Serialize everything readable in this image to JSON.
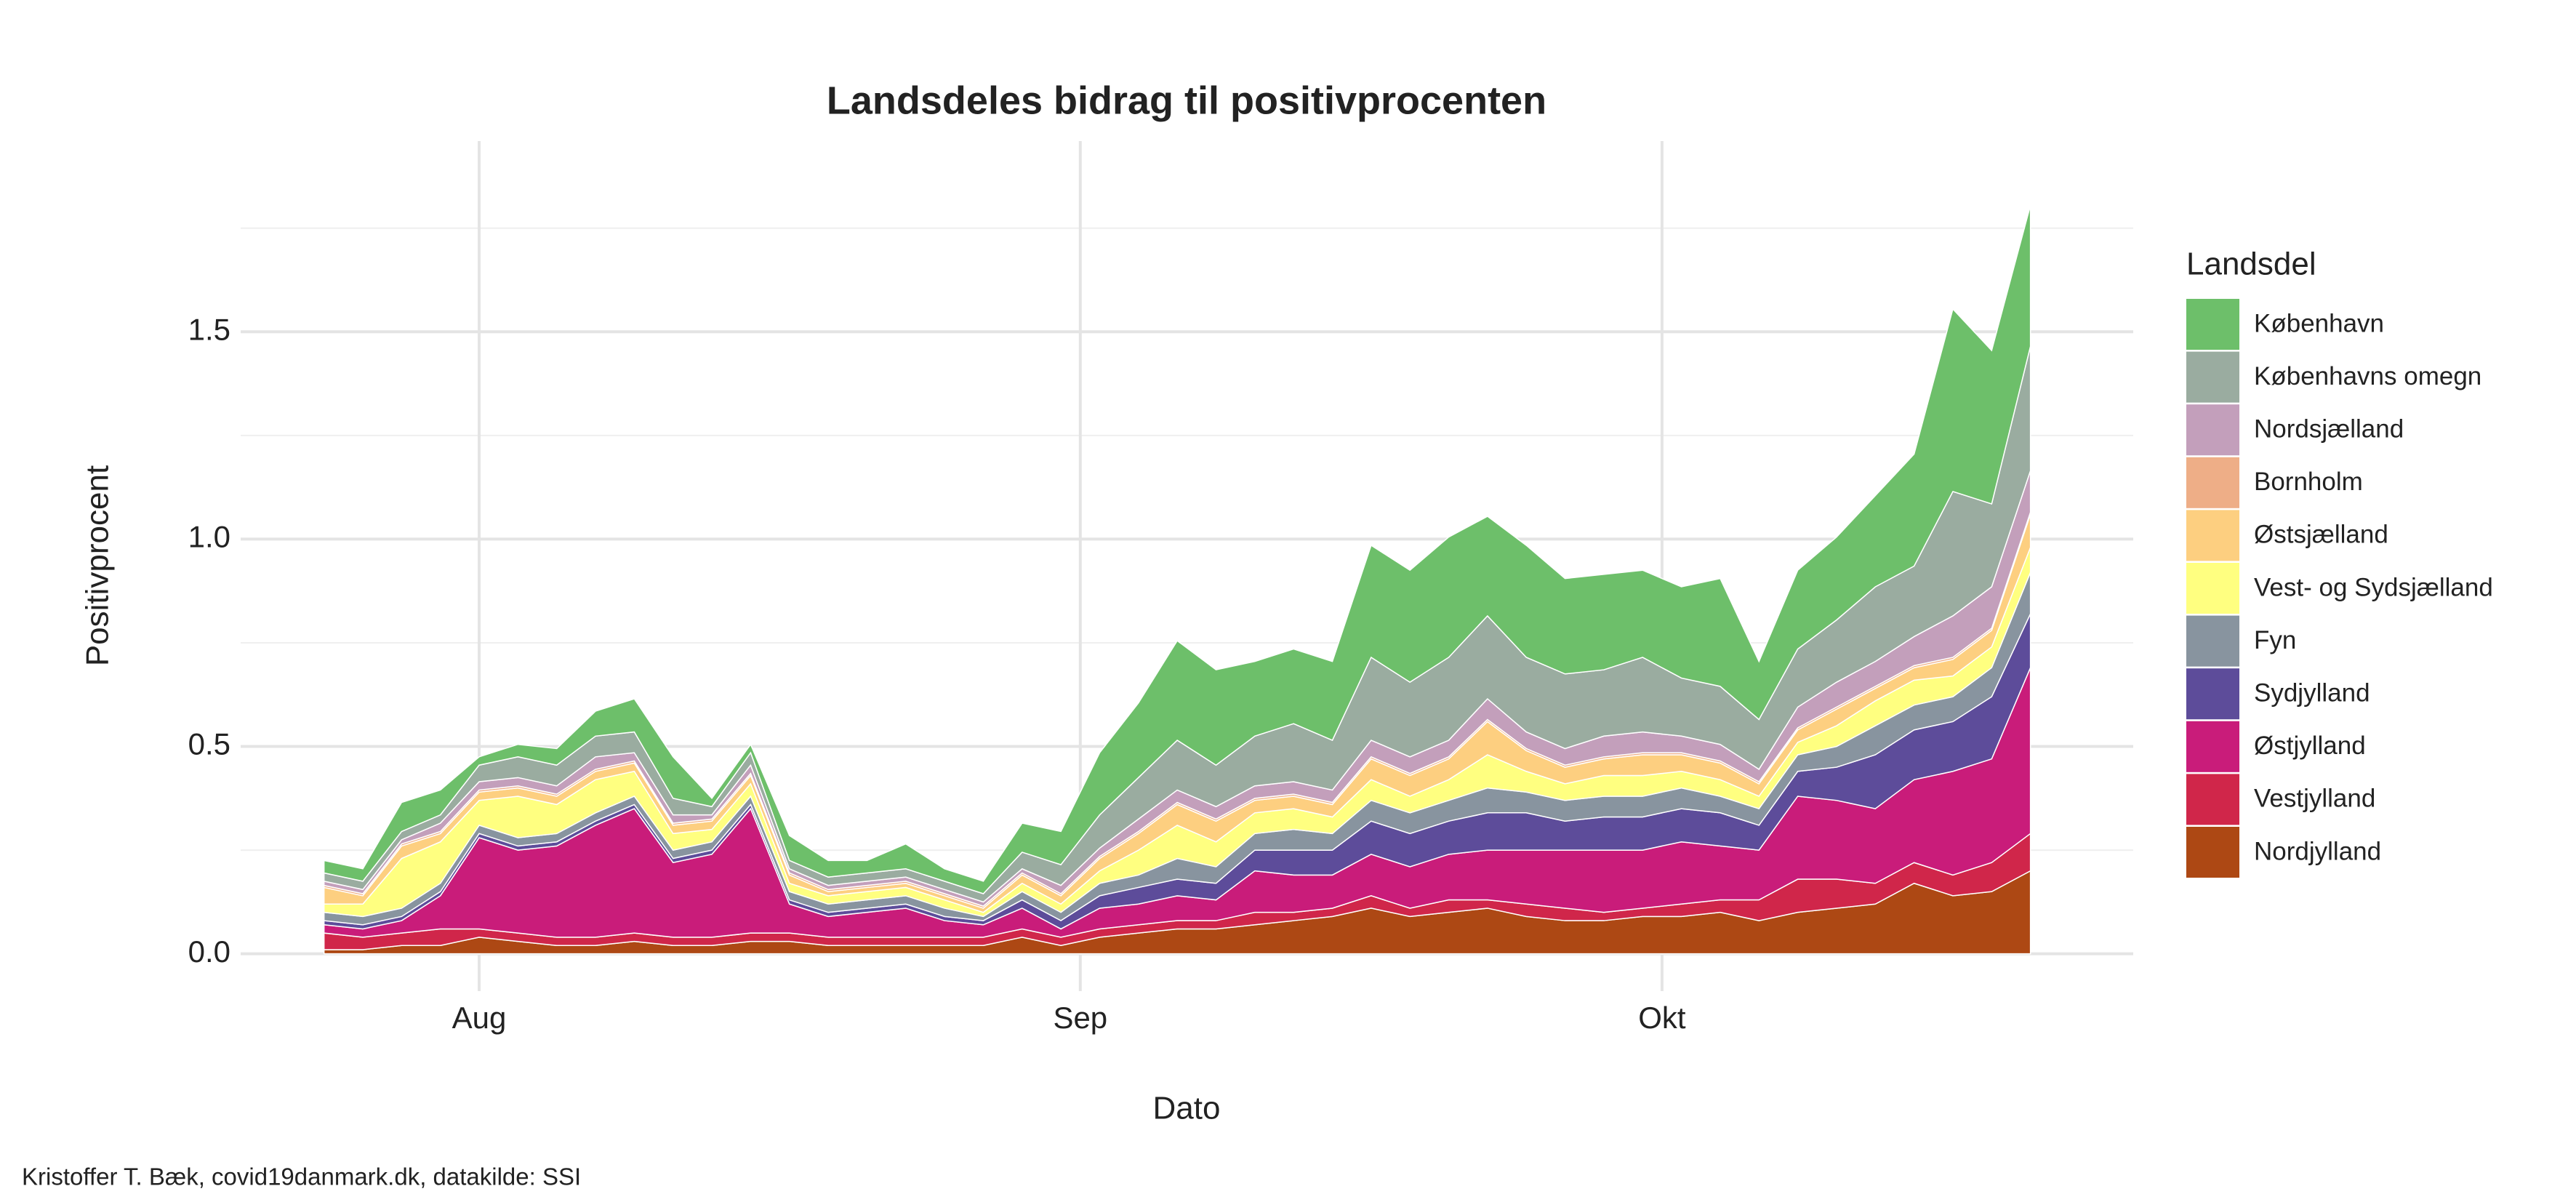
{
  "chart_data": {
    "type": "stacked_area",
    "title": "Landsdeles bidrag til positivprocenten",
    "xlabel": "Dato",
    "ylabel": "Positivprocent",
    "caption": "Kristoffer T. Bæk, covid19danmark.dk, datakilde: SSI",
    "legend_title": "Landsdel",
    "legend": "right",
    "grid": true,
    "x": [
      -8,
      -6,
      -4,
      -2,
      0,
      2,
      4,
      6,
      8,
      10,
      12,
      14,
      16,
      18,
      20,
      22,
      24,
      26,
      28,
      30,
      32,
      34,
      36,
      38,
      40,
      42,
      44,
      46,
      48,
      50,
      52,
      54,
      56,
      58,
      60,
      62,
      64,
      66,
      68,
      70,
      72,
      74,
      76,
      78,
      80
    ],
    "xlim": [
      -12.3,
      85.3
    ],
    "xticks": [
      {
        "value": 0,
        "label": "Aug"
      },
      {
        "value": 31,
        "label": "Sep"
      },
      {
        "value": 61,
        "label": "Okt"
      }
    ],
    "ylim": [
      -0.09,
      1.96
    ],
    "yticks": [
      {
        "value": 0,
        "label": "0.0"
      },
      0.5,
      {
        "value": 1,
        "label": "1.0"
      },
      1.5
    ],
    "yminorticks": [
      0.25,
      0.75,
      1.25,
      1.75
    ],
    "series": [
      {
        "name": "København",
        "color": "#6dbf6a",
        "values": [
          0.03,
          0.03,
          0.07,
          0.06,
          0.02,
          0.03,
          0.04,
          0.06,
          0.08,
          0.1,
          0.02,
          0.02,
          0.06,
          0.04,
          0.03,
          0.06,
          0.03,
          0.03,
          0.07,
          0.08,
          0.15,
          0.18,
          0.24,
          0.23,
          0.18,
          0.18,
          0.19,
          0.27,
          0.27,
          0.29,
          0.24,
          0.27,
          0.23,
          0.23,
          0.21,
          0.22,
          0.26,
          0.14,
          0.19,
          0.2,
          0.22,
          0.27,
          0.44,
          0.37,
          0.34
        ]
      },
      {
        "name": "Københavns omegn",
        "color": "#9aaca0",
        "values": [
          0.02,
          0.02,
          0.02,
          0.02,
          0.04,
          0.05,
          0.05,
          0.05,
          0.05,
          0.04,
          0.02,
          0.03,
          0.02,
          0.02,
          0.02,
          0.02,
          0.02,
          0.02,
          0.04,
          0.05,
          0.08,
          0.1,
          0.12,
          0.1,
          0.12,
          0.14,
          0.12,
          0.2,
          0.18,
          0.2,
          0.2,
          0.18,
          0.18,
          0.16,
          0.18,
          0.14,
          0.14,
          0.12,
          0.14,
          0.15,
          0.18,
          0.17,
          0.3,
          0.2,
          0.3
        ]
      },
      {
        "name": "Nordsjælland",
        "color": "#c39fbb",
        "values": [
          0.01,
          0.01,
          0.01,
          0.02,
          0.02,
          0.02,
          0.02,
          0.03,
          0.02,
          0.02,
          0.01,
          0.02,
          0.01,
          0.01,
          0.01,
          0.01,
          0.01,
          0.01,
          0.01,
          0.02,
          0.02,
          0.03,
          0.03,
          0.03,
          0.03,
          0.03,
          0.03,
          0.04,
          0.04,
          0.04,
          0.05,
          0.04,
          0.04,
          0.05,
          0.05,
          0.04,
          0.04,
          0.03,
          0.05,
          0.06,
          0.06,
          0.07,
          0.1,
          0.1,
          0.1
        ]
      },
      {
        "name": "Bornholm",
        "color": "#eeae87",
        "values": [
          0.005,
          0.005,
          0.005,
          0.005,
          0.005,
          0.005,
          0.005,
          0.005,
          0.005,
          0.005,
          0.005,
          0.005,
          0.005,
          0.005,
          0.005,
          0.005,
          0.005,
          0.005,
          0.005,
          0.005,
          0.005,
          0.005,
          0.005,
          0.005,
          0.005,
          0.005,
          0.005,
          0.005,
          0.005,
          0.005,
          0.005,
          0.005,
          0.005,
          0.005,
          0.005,
          0.005,
          0.005,
          0.005,
          0.005,
          0.005,
          0.005,
          0.005,
          0.005,
          0.005,
          0.005
        ]
      },
      {
        "name": "Østsjælland",
        "color": "#fdcf80",
        "values": [
          0.04,
          0.02,
          0.03,
          0.02,
          0.02,
          0.02,
          0.02,
          0.02,
          0.02,
          0.02,
          0.02,
          0.02,
          0.02,
          0.01,
          0.01,
          0.01,
          0.01,
          0.01,
          0.02,
          0.02,
          0.03,
          0.04,
          0.05,
          0.05,
          0.03,
          0.03,
          0.03,
          0.05,
          0.05,
          0.05,
          0.08,
          0.05,
          0.04,
          0.04,
          0.05,
          0.04,
          0.04,
          0.03,
          0.03,
          0.04,
          0.03,
          0.03,
          0.04,
          0.04,
          0.08
        ]
      },
      {
        "name": "Vest- og Sydsjælland",
        "color": "#ffff80",
        "values": [
          0.02,
          0.03,
          0.12,
          0.1,
          0.06,
          0.1,
          0.07,
          0.08,
          0.06,
          0.04,
          0.03,
          0.03,
          0.02,
          0.02,
          0.02,
          0.02,
          0.02,
          0.01,
          0.02,
          0.02,
          0.03,
          0.06,
          0.08,
          0.06,
          0.05,
          0.05,
          0.04,
          0.05,
          0.04,
          0.05,
          0.08,
          0.05,
          0.04,
          0.05,
          0.05,
          0.04,
          0.04,
          0.03,
          0.03,
          0.05,
          0.06,
          0.06,
          0.05,
          0.05,
          0.06
        ]
      },
      {
        "name": "Fyn",
        "color": "#88949f",
        "values": [
          0.02,
          0.02,
          0.02,
          0.02,
          0.02,
          0.02,
          0.02,
          0.02,
          0.02,
          0.02,
          0.02,
          0.02,
          0.02,
          0.02,
          0.02,
          0.02,
          0.02,
          0.01,
          0.02,
          0.02,
          0.03,
          0.03,
          0.05,
          0.04,
          0.04,
          0.05,
          0.04,
          0.05,
          0.05,
          0.05,
          0.06,
          0.05,
          0.05,
          0.05,
          0.05,
          0.05,
          0.04,
          0.04,
          0.04,
          0.05,
          0.07,
          0.06,
          0.06,
          0.07,
          0.1
        ]
      },
      {
        "name": "Sydjylland",
        "color": "#5d4c9a",
        "values": [
          0.01,
          0.01,
          0.01,
          0.01,
          0.01,
          0.01,
          0.01,
          0.01,
          0.01,
          0.01,
          0.01,
          0.01,
          0.01,
          0.01,
          0.01,
          0.01,
          0.01,
          0.01,
          0.02,
          0.02,
          0.03,
          0.04,
          0.04,
          0.04,
          0.05,
          0.06,
          0.06,
          0.08,
          0.08,
          0.08,
          0.09,
          0.09,
          0.07,
          0.08,
          0.08,
          0.08,
          0.08,
          0.06,
          0.06,
          0.08,
          0.13,
          0.12,
          0.12,
          0.15,
          0.13
        ]
      },
      {
        "name": "Østjylland",
        "color": "#c91c7a",
        "values": [
          0.02,
          0.02,
          0.03,
          0.08,
          0.22,
          0.2,
          0.22,
          0.27,
          0.3,
          0.18,
          0.2,
          0.3,
          0.07,
          0.05,
          0.06,
          0.07,
          0.04,
          0.03,
          0.05,
          0.02,
          0.05,
          0.05,
          0.06,
          0.05,
          0.1,
          0.09,
          0.08,
          0.1,
          0.1,
          0.11,
          0.12,
          0.13,
          0.14,
          0.15,
          0.14,
          0.15,
          0.13,
          0.12,
          0.2,
          0.19,
          0.18,
          0.2,
          0.25,
          0.25,
          0.4
        ]
      },
      {
        "name": "Vestjylland",
        "color": "#d0264a",
        "values": [
          0.04,
          0.03,
          0.03,
          0.04,
          0.02,
          0.02,
          0.02,
          0.02,
          0.02,
          0.02,
          0.02,
          0.02,
          0.02,
          0.02,
          0.02,
          0.02,
          0.02,
          0.02,
          0.02,
          0.02,
          0.02,
          0.02,
          0.02,
          0.02,
          0.03,
          0.02,
          0.02,
          0.03,
          0.02,
          0.03,
          0.02,
          0.03,
          0.03,
          0.02,
          0.02,
          0.03,
          0.03,
          0.05,
          0.08,
          0.07,
          0.05,
          0.05,
          0.05,
          0.07,
          0.09
        ]
      },
      {
        "name": "Nordjylland",
        "color": "#ad4814",
        "values": [
          0.01,
          0.01,
          0.02,
          0.02,
          0.04,
          0.03,
          0.02,
          0.02,
          0.03,
          0.02,
          0.02,
          0.03,
          0.03,
          0.02,
          0.02,
          0.02,
          0.02,
          0.02,
          0.04,
          0.02,
          0.04,
          0.05,
          0.06,
          0.06,
          0.07,
          0.08,
          0.09,
          0.11,
          0.09,
          0.1,
          0.11,
          0.09,
          0.08,
          0.08,
          0.09,
          0.09,
          0.1,
          0.08,
          0.1,
          0.11,
          0.12,
          0.17,
          0.14,
          0.15,
          0.2
        ]
      }
    ]
  }
}
